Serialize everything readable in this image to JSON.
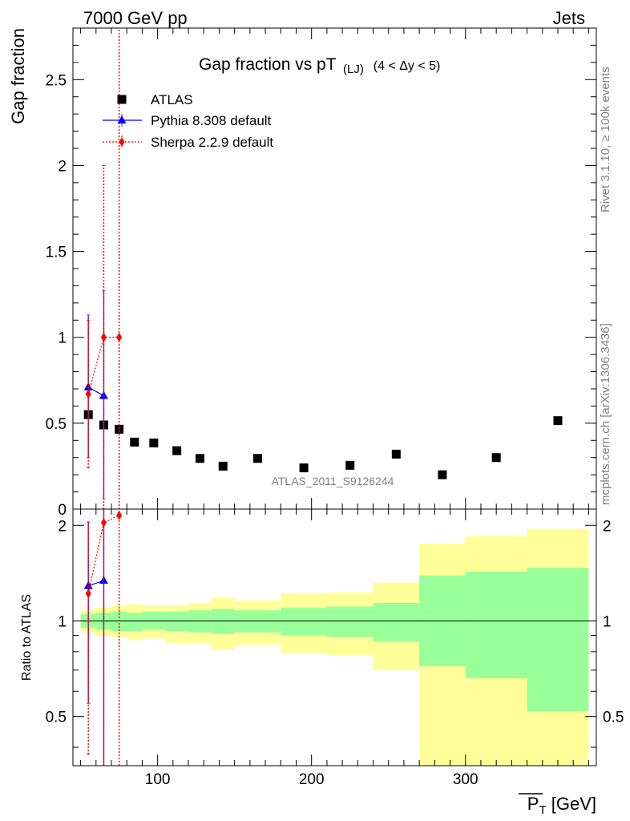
{
  "header": {
    "left": "7000 GeV pp",
    "right": "Jets"
  },
  "side_labels": {
    "rivet": "Rivet 3.1.10, ≥ 100k events",
    "mcplots": "mcplots.cern.ch [arXiv:1306.3436]"
  },
  "colors": {
    "atlas": "#000000",
    "pythia": "#0000ff",
    "pythia_err": "#6a3aa8",
    "sherpa": "#ff0000",
    "band_inner": "#99ff99",
    "band_outer": "#ffff99"
  },
  "chart_data": [
    {
      "type": "scatter",
      "title": "Gap fraction vs pT",
      "title_sub": "(LJ)",
      "title_range": "(4 < Δy < 5)",
      "ylabel": "Gap fraction",
      "watermark": "ATLAS_2011_S9126244",
      "xlim": [
        45,
        385
      ],
      "ylim": [
        0,
        2.8
      ],
      "yticks": [
        0,
        0.5,
        1,
        1.5,
        2,
        2.5
      ],
      "ytick_labels": [
        "0",
        "0.5",
        "1",
        "1.5",
        "2",
        "2.5"
      ],
      "legend_position": "top-left",
      "legend": [
        {
          "key": "atlas",
          "label": "ATLAS"
        },
        {
          "key": "pythia",
          "label": "Pythia 8.308 default"
        },
        {
          "key": "sherpa",
          "label": "Sherpa 2.2.9 default"
        }
      ],
      "series": [
        {
          "name": "ATLAS",
          "key": "atlas",
          "x": [
            55,
            65,
            75,
            85,
            97.5,
            112.5,
            127.5,
            142.5,
            165,
            195,
            225,
            255,
            285,
            320,
            360
          ],
          "y": [
            0.55,
            0.49,
            0.465,
            0.39,
            0.385,
            0.34,
            0.295,
            0.25,
            0.295,
            0.24,
            0.255,
            0.32,
            0.2,
            0.3,
            0.515
          ]
        },
        {
          "name": "Pythia 8.308 default",
          "key": "pythia",
          "x": [
            55,
            65
          ],
          "y": [
            0.71,
            0.66
          ],
          "err_low": [
            0.3,
            0.06
          ],
          "err_high": [
            1.13,
            1.27
          ]
        },
        {
          "name": "Sherpa 2.2.9 default",
          "key": "sherpa",
          "x": [
            55,
            65,
            75
          ],
          "y": [
            0.67,
            1.0,
            1.0
          ],
          "err_low": [
            0.24,
            0.0,
            0.0
          ],
          "err_high": [
            1.1,
            2.0,
            2.8
          ]
        }
      ]
    },
    {
      "type": "scatter",
      "ylabel": "Ratio to ATLAS",
      "xlabel": "P_T [GeV]",
      "xlim": [
        45,
        385
      ],
      "ylim": [
        0.35,
        2.25
      ],
      "yticks": [
        0.5,
        1,
        2
      ],
      "ytick_labels": [
        "0.5",
        "1",
        "2"
      ],
      "xticks": [
        100,
        200,
        300
      ],
      "xtick_labels": [
        "100",
        "200",
        "300"
      ],
      "reference_line": 1,
      "bands": [
        {
          "x0": 50,
          "x1": 60,
          "inner": [
            0.95,
            1.05
          ],
          "outer": [
            0.92,
            1.08
          ]
        },
        {
          "x0": 60,
          "x1": 70,
          "inner": [
            0.94,
            1.06
          ],
          "outer": [
            0.9,
            1.1
          ]
        },
        {
          "x0": 70,
          "x1": 80,
          "inner": [
            0.93,
            1.07
          ],
          "outer": [
            0.89,
            1.12
          ]
        },
        {
          "x0": 80,
          "x1": 90,
          "inner": [
            0.93,
            1.06
          ],
          "outer": [
            0.87,
            1.13
          ]
        },
        {
          "x0": 90,
          "x1": 105,
          "inner": [
            0.94,
            1.07
          ],
          "outer": [
            0.88,
            1.12
          ]
        },
        {
          "x0": 105,
          "x1": 120,
          "inner": [
            0.93,
            1.07
          ],
          "outer": [
            0.85,
            1.12
          ]
        },
        {
          "x0": 120,
          "x1": 135,
          "inner": [
            0.92,
            1.08
          ],
          "outer": [
            0.85,
            1.14
          ]
        },
        {
          "x0": 135,
          "x1": 150,
          "inner": [
            0.91,
            1.09
          ],
          "outer": [
            0.81,
            1.18
          ]
        },
        {
          "x0": 150,
          "x1": 180,
          "inner": [
            0.92,
            1.08
          ],
          "outer": [
            0.84,
            1.16
          ]
        },
        {
          "x0": 180,
          "x1": 210,
          "inner": [
            0.9,
            1.1
          ],
          "outer": [
            0.79,
            1.22
          ]
        },
        {
          "x0": 210,
          "x1": 240,
          "inner": [
            0.89,
            1.11
          ],
          "outer": [
            0.78,
            1.23
          ]
        },
        {
          "x0": 240,
          "x1": 270,
          "inner": [
            0.86,
            1.14
          ],
          "outer": [
            0.7,
            1.32
          ]
        },
        {
          "x0": 270,
          "x1": 300,
          "inner": [
            0.72,
            1.39
          ],
          "outer": [
            0.35,
            1.75
          ]
        },
        {
          "x0": 300,
          "x1": 340,
          "inner": [
            0.66,
            1.43
          ],
          "outer": [
            0.35,
            1.85
          ]
        },
        {
          "x0": 340,
          "x1": 380,
          "inner": [
            0.52,
            1.47
          ],
          "outer": [
            0.35,
            1.95
          ]
        }
      ],
      "series": [
        {
          "name": "Pythia 8.308 default",
          "key": "pythia",
          "x": [
            55,
            65
          ],
          "y": [
            1.29,
            1.34
          ],
          "err_low": [
            0.55,
            0.35
          ],
          "err_high": [
            2.05,
            2.25
          ]
        },
        {
          "name": "Sherpa 2.2.9 default",
          "key": "sherpa",
          "x": [
            55,
            65,
            75
          ],
          "y": [
            1.22,
            2.04,
            2.15
          ],
          "err_low": [
            0.38,
            0.35,
            0.35
          ],
          "err_high": [
            2.05,
            2.25,
            2.25
          ]
        }
      ]
    }
  ]
}
